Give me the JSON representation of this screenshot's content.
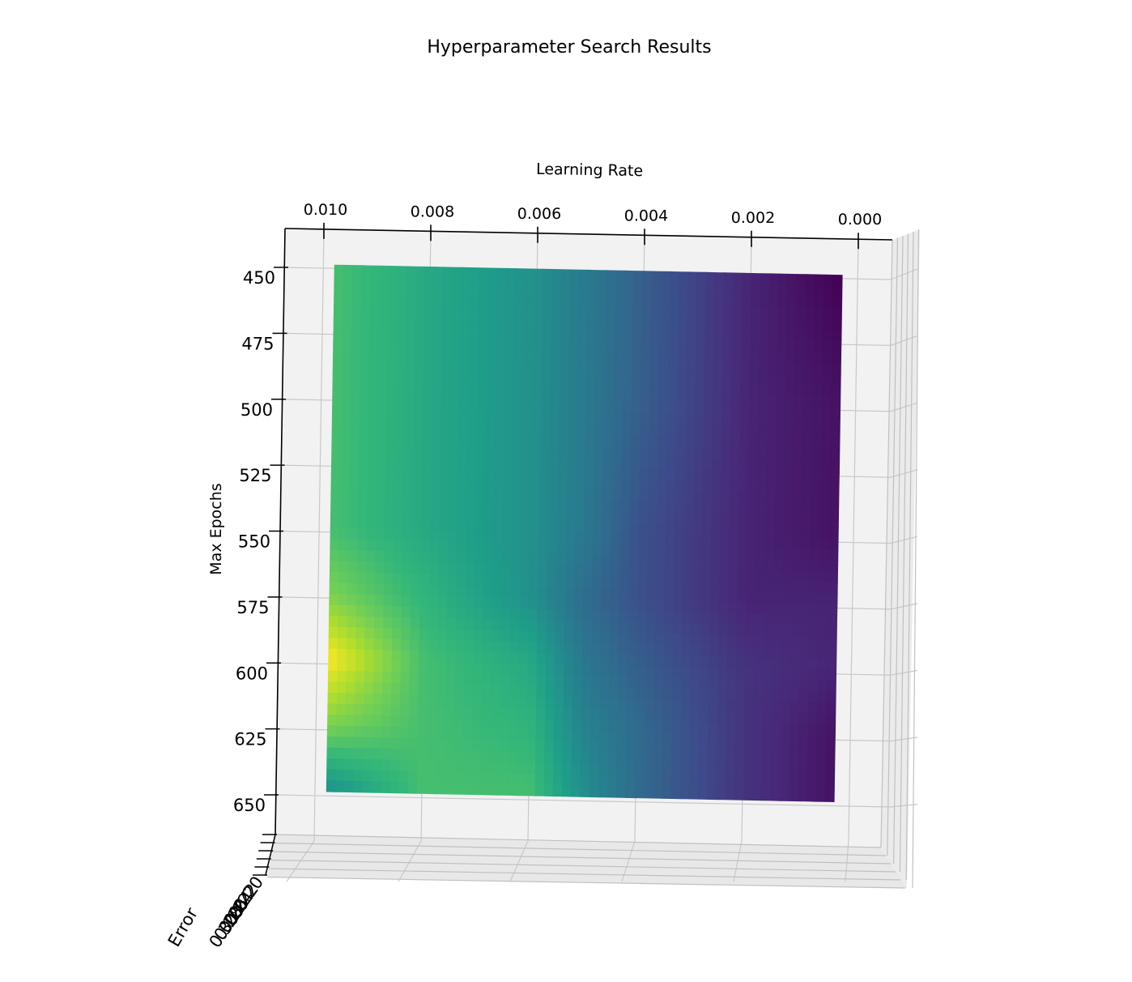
{
  "chart_data": {
    "type": "surface",
    "title": "Hyperparameter Search Results",
    "xlabel": "Learning Rate",
    "ylabel": "Max Epochs",
    "zlabel": "Error",
    "x_ticks": [
      "0.010",
      "0.008",
      "0.006",
      "0.004",
      "0.002",
      "0.000"
    ],
    "y_ticks": [
      "450",
      "475",
      "500",
      "525",
      "550",
      "575",
      "600",
      "625",
      "650"
    ],
    "z_ticks": [
      "0.20",
      "0.22",
      "0.24",
      "0.26",
      "0.28",
      "0.30"
    ],
    "xlim": [
      0.0,
      0.0103
    ],
    "ylim": [
      440,
      660
    ],
    "colormap": "viridis",
    "grid": true,
    "view": "top-down, slightly tilted",
    "x": [
      0.0098,
      0.008,
      0.006,
      0.005,
      0.004,
      0.002,
      0.0003
    ],
    "y": [
      450,
      500,
      550,
      575,
      600,
      625,
      650
    ],
    "z": [
      [
        0.27,
        0.26,
        0.25,
        0.24,
        0.23,
        0.21,
        0.2
      ],
      [
        0.27,
        0.26,
        0.25,
        0.24,
        0.23,
        0.21,
        0.205
      ],
      [
        0.27,
        0.26,
        0.25,
        0.24,
        0.225,
        0.21,
        0.205
      ],
      [
        0.28,
        0.265,
        0.25,
        0.235,
        0.225,
        0.21,
        0.21
      ],
      [
        0.3,
        0.27,
        0.26,
        0.24,
        0.23,
        0.215,
        0.21
      ],
      [
        0.28,
        0.27,
        0.265,
        0.245,
        0.235,
        0.215,
        0.205
      ],
      [
        0.25,
        0.27,
        0.27,
        0.25,
        0.235,
        0.215,
        0.205
      ]
    ]
  }
}
